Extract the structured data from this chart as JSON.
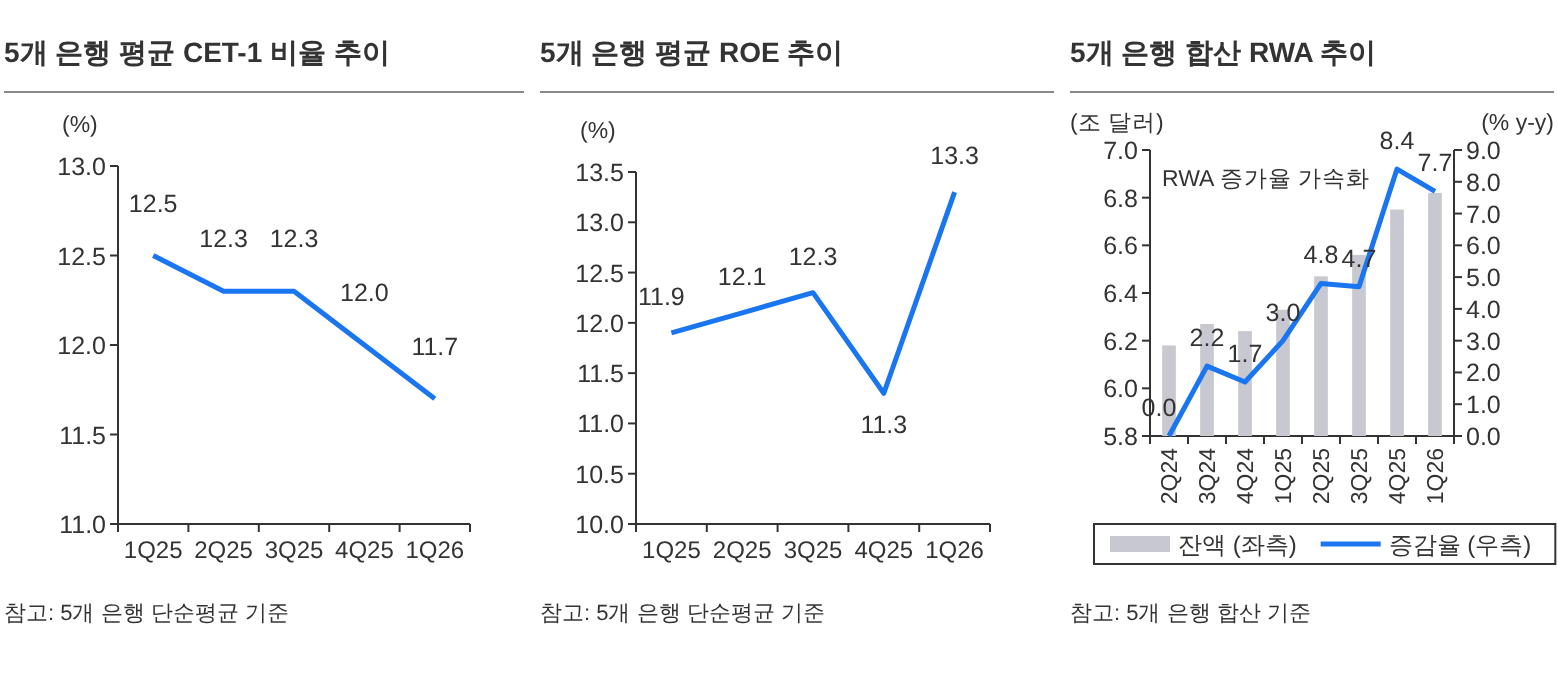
{
  "chart_data": [
    {
      "type": "line",
      "title": "5개 은행 평균 CET-1 비율 추이",
      "ylabel": "(%)",
      "categories": [
        "1Q25",
        "2Q25",
        "3Q25",
        "4Q25",
        "1Q26"
      ],
      "series": [
        {
          "color": "#1a75f0",
          "values": [
            12.5,
            12.3,
            12.3,
            12.0,
            11.7
          ],
          "value_labels": [
            "12.5",
            "12.3",
            "12.3",
            "12.0",
            "11.7"
          ]
        }
      ],
      "ylim": [
        11,
        13
      ],
      "yticks": [
        {
          "value": 11,
          "label": "11.0"
        },
        {
          "value": 11.5,
          "label": "11.5"
        },
        {
          "value": 12,
          "label": "12.0"
        },
        {
          "value": 12.5,
          "label": "12.5"
        },
        {
          "value": 13,
          "label": "13.0"
        }
      ],
      "grid": false,
      "legend": false,
      "marker": "none",
      "line_style": "solid",
      "annotations": [
        "참고: 5개 은행 단순평균 기준"
      ]
    },
    {
      "type": "line",
      "title": "5개 은행 평균 ROE 추이",
      "ylabel": "(%)",
      "categories": [
        "1Q25",
        "2Q25",
        "3Q25",
        "4Q25",
        "1Q26"
      ],
      "series": [
        {
          "color": "#1a75f0",
          "values": [
            11.9,
            12.1,
            12.3,
            11.3,
            13.3
          ],
          "value_labels": [
            "11.9",
            "12.1",
            "12.3",
            "11.3",
            "13.3"
          ]
        }
      ],
      "ylim": [
        10,
        13.5
      ],
      "yticks": [
        {
          "value": 10,
          "label": "10.0"
        },
        {
          "value": 10.5,
          "label": "10.5"
        },
        {
          "value": 11,
          "label": "11.0"
        },
        {
          "value": 11.5,
          "label": "11.5"
        },
        {
          "value": 12,
          "label": "12.0"
        },
        {
          "value": 12.5,
          "label": "12.5"
        },
        {
          "value": 13,
          "label": "13.0"
        },
        {
          "value": 13.5,
          "label": "13.5"
        }
      ],
      "grid": false,
      "legend": false,
      "marker": "none",
      "line_style": "solid",
      "annotations": [
        "참고: 5개 은행 단순평균 기준"
      ]
    },
    {
      "type": "bar",
      "title": "5개 은행 합산 RWA 추이",
      "ylabel": "(조 달러)",
      "y2label": "(% y-y)",
      "categories": [
        "2Q24",
        "3Q24",
        "4Q24",
        "1Q25",
        "2Q25",
        "3Q25",
        "4Q25",
        "1Q26"
      ],
      "series": [
        {
          "name": "잔액 (좌측)",
          "color": "#c8c8d0",
          "values": [
            6.18,
            6.27,
            6.24,
            6.33,
            6.47,
            6.56,
            6.75,
            6.82
          ]
        },
        {
          "name": "증감율 (우측)",
          "type": "line",
          "axis": "y2",
          "color": "#1a75f0",
          "values": [
            0.0,
            2.2,
            1.7,
            3.0,
            4.8,
            4.7,
            8.4,
            7.7
          ],
          "value_labels": [
            "0.0",
            "2.2",
            "1.7",
            "3.0",
            "4.8",
            "4.7",
            "8.4",
            "7.7"
          ]
        }
      ],
      "ylim": [
        5.8,
        7.0
      ],
      "yticks": [
        {
          "value": 5.8,
          "label": "5.8"
        },
        {
          "value": 6,
          "label": "6.0"
        },
        {
          "value": 6.2,
          "label": "6.2"
        },
        {
          "value": 6.4,
          "label": "6.4"
        },
        {
          "value": 6.6,
          "label": "6.6"
        },
        {
          "value": 6.8,
          "label": "6.8"
        },
        {
          "value": 7,
          "label": "7.0"
        }
      ],
      "y2lim": [
        0,
        9
      ],
      "y2ticks": [
        {
          "value": 0,
          "label": "0.0"
        },
        {
          "value": 1,
          "label": "1.0"
        },
        {
          "value": 2,
          "label": "2.0"
        },
        {
          "value": 3,
          "label": "3.0"
        },
        {
          "value": 4,
          "label": "4.0"
        },
        {
          "value": 5,
          "label": "5.0"
        },
        {
          "value": 6,
          "label": "6.0"
        },
        {
          "value": 7,
          "label": "7.0"
        },
        {
          "value": 8,
          "label": "8.0"
        },
        {
          "value": 9,
          "label": "9.0"
        }
      ],
      "grid": false,
      "legend": "bottom",
      "marker": "none",
      "line_style": "solid",
      "annotations": [
        "RWA 증가율 가속화",
        "참고: 5개 은행 합산 기준"
      ]
    }
  ]
}
